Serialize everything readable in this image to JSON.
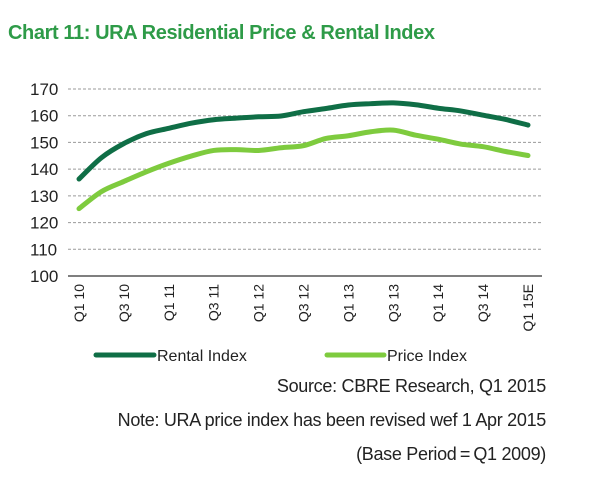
{
  "title": "Chart 11: URA Residential Price & Rental Index",
  "source": "Source: CBRE Research, Q1 2015",
  "note": "Note: URA price index has been revised wef 1 Apr 2015",
  "base_period": "(Base Period = Q1 2009)",
  "colors": {
    "title": "#2e9b48",
    "rental": "#0f6e46",
    "price": "#7ecb3e",
    "grid": "#9a9a9a",
    "axis": "#333333"
  },
  "chart_data": {
    "type": "line",
    "title": "Chart 11: URA Residential Price & Rental Index",
    "xlabel": "",
    "ylabel": "",
    "ylim": [
      100,
      170
    ],
    "yticks": [
      100,
      110,
      120,
      130,
      140,
      150,
      160,
      170
    ],
    "grid": true,
    "legend_position": "bottom",
    "x": [
      "Q1 10",
      "Q2 10",
      "Q3 10",
      "Q4 10",
      "Q1 11",
      "Q2 11",
      "Q3 11",
      "Q4 11",
      "Q1 12",
      "Q2 12",
      "Q3 12",
      "Q4 12",
      "Q1 13",
      "Q2 13",
      "Q3 13",
      "Q4 13",
      "Q1 14",
      "Q2 14",
      "Q3 14",
      "Q4 14",
      "Q1 15E"
    ],
    "xtick_labels": [
      "Q1 10",
      "Q3 10",
      "Q1 11",
      "Q3 11",
      "Q1 12",
      "Q3 12",
      "Q1 13",
      "Q3 13",
      "Q1 14",
      "Q3 14",
      "Q1 15E"
    ],
    "series": [
      {
        "name": "Rental Index",
        "color": "#0f6e46",
        "values": [
          136.3,
          144.3,
          149.6,
          153.3,
          155.3,
          157.2,
          158.5,
          159.1,
          159.6,
          159.9,
          161.5,
          162.7,
          164.0,
          164.5,
          164.8,
          164.1,
          162.8,
          161.8,
          160.2,
          158.6,
          156.5
        ]
      },
      {
        "name": "Price Index",
        "color": "#7ecb3e",
        "values": [
          125.2,
          131.6,
          135.4,
          139.0,
          142.2,
          144.9,
          147.0,
          147.3,
          147.0,
          148.0,
          148.8,
          151.5,
          152.5,
          154.0,
          154.6,
          152.7,
          151.2,
          149.4,
          148.4,
          146.6,
          145.1
        ]
      }
    ]
  }
}
